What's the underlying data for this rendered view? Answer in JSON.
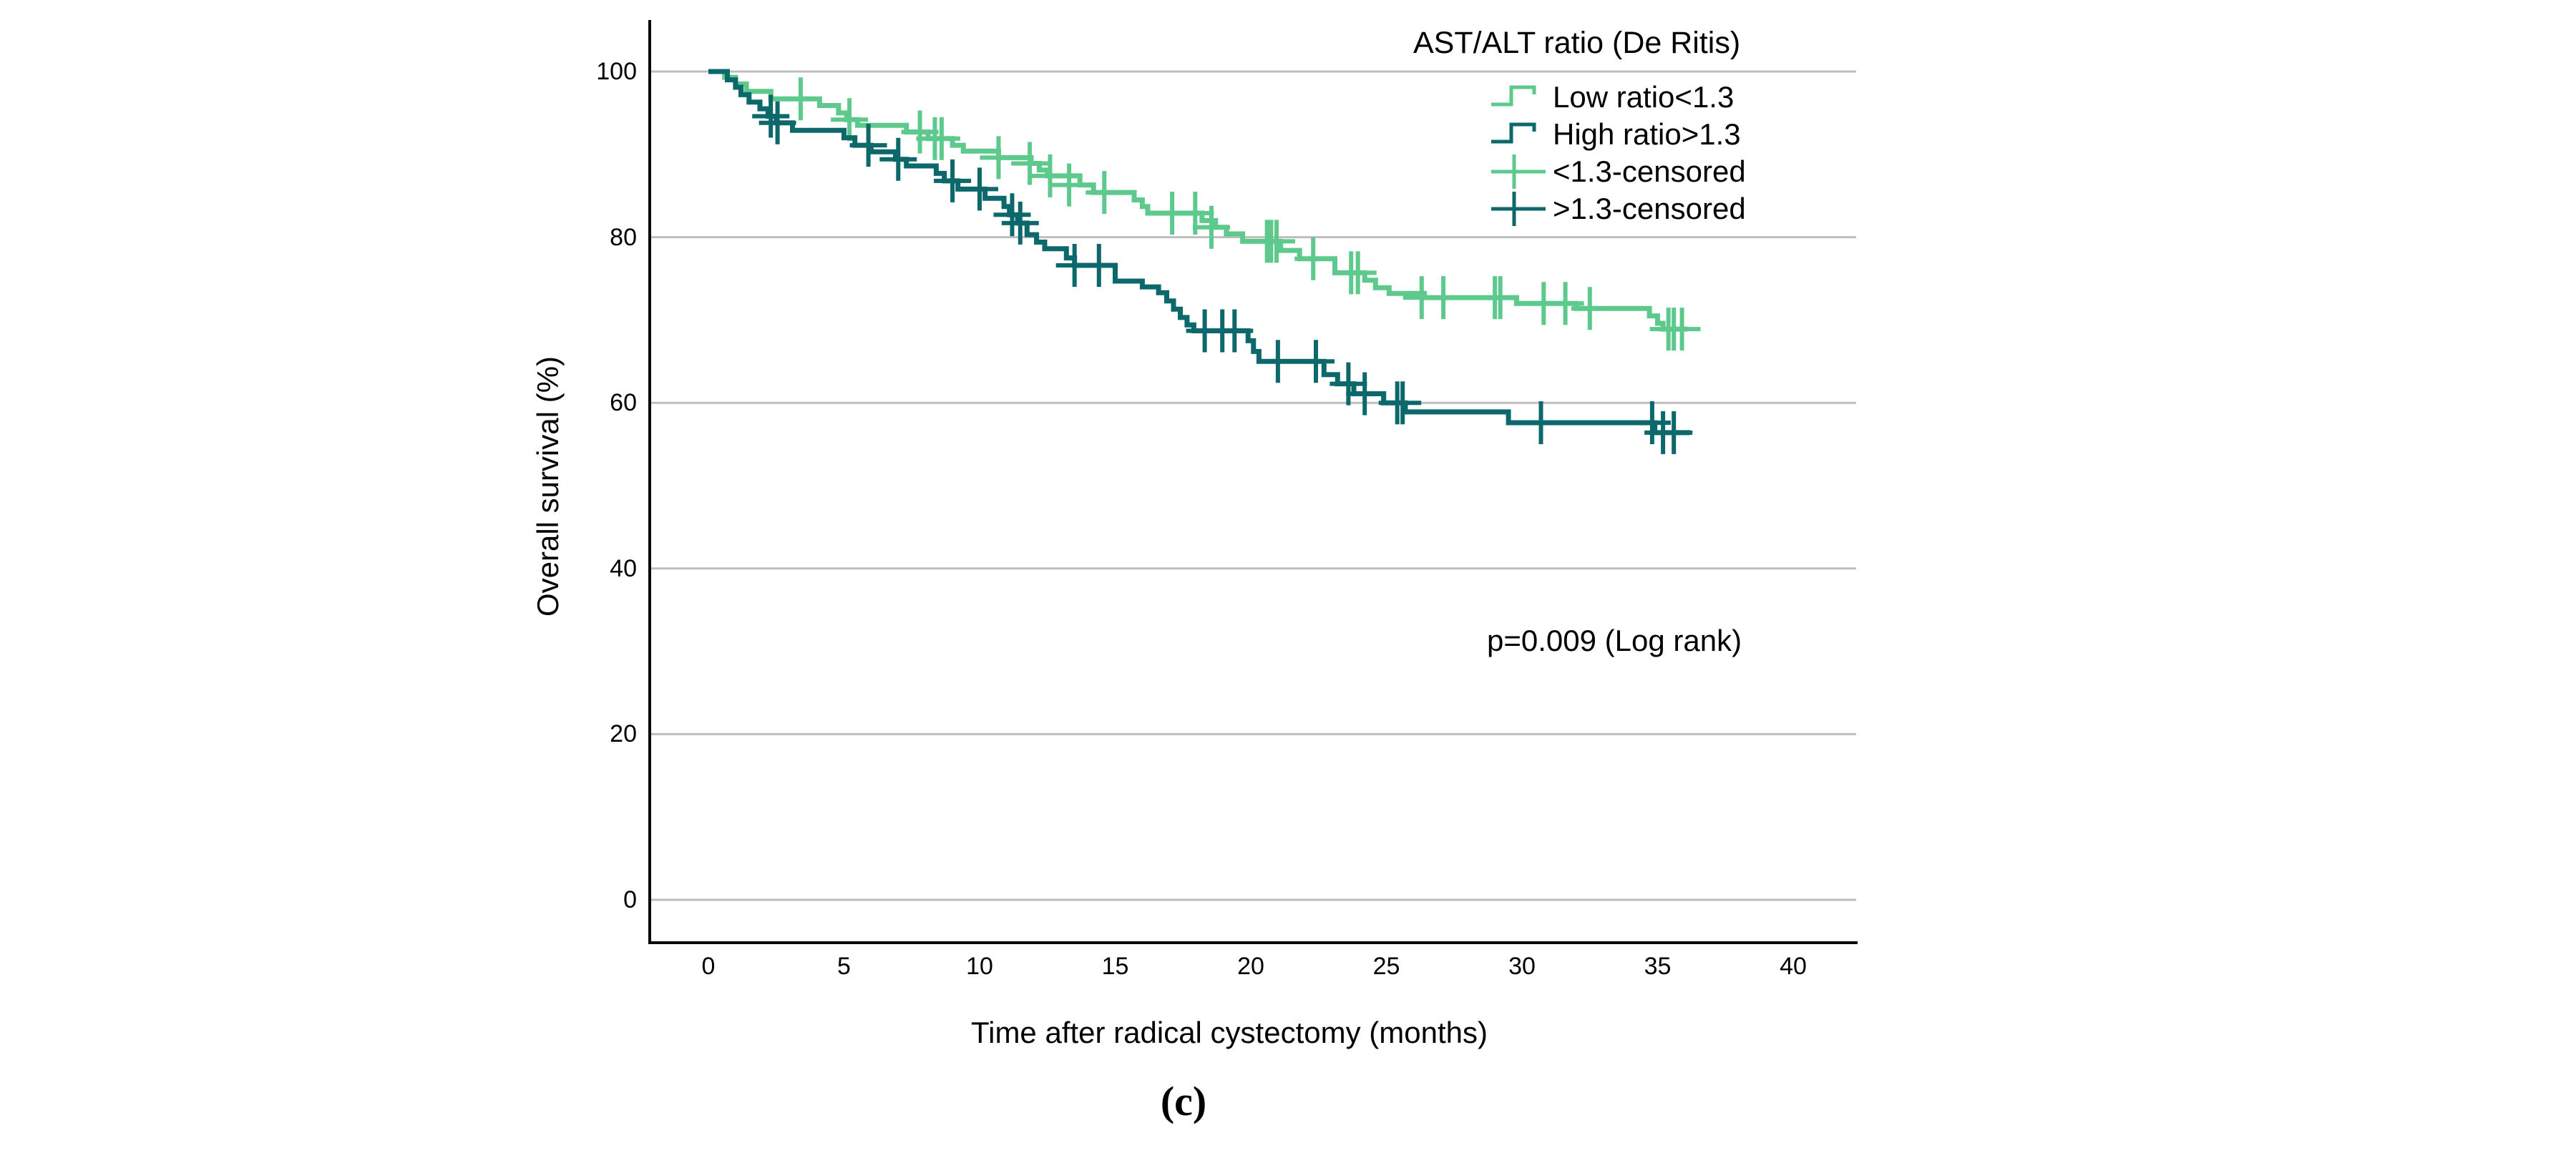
{
  "figure": {
    "panel_label": "(c)"
  },
  "legend": {
    "title": "AST/ALT ratio (De Ritis)",
    "items": [
      {
        "label": "Low ratio<1.3",
        "marker": "step-line",
        "color": "#5dc98c"
      },
      {
        "label": "High ratio>1.3",
        "marker": "step-line",
        "color": "#0d686b"
      },
      {
        "label": "<1.3-censored",
        "marker": "plus",
        "color": "#5dc98c"
      },
      {
        "label": ">1.3-censored",
        "marker": "plus",
        "color": "#0d686b"
      }
    ]
  },
  "chart_data": {
    "type": "line",
    "subtype": "kaplan-meier-step",
    "title": "AST/ALT ratio (De Ritis)",
    "xlabel": "Time after radical cystectomy (months)",
    "ylabel": "Overall survival (%)",
    "annotation": "p=0.009 (Log rank)",
    "xlim": [
      -2.2,
      42.5
    ],
    "ylim": [
      -5,
      106
    ],
    "x_ticks": [
      0,
      5,
      10,
      15,
      20,
      25,
      30,
      35,
      40
    ],
    "y_ticks": [
      100,
      80,
      60,
      40,
      20,
      0
    ],
    "grid": "horizontal",
    "legend_position": "top-right",
    "style": {
      "grid_color": "#bebebe",
      "axis_color": "#0a0a0a",
      "background": "#ffffff"
    },
    "series": [
      {
        "id": "low-ratio",
        "name": "Low ratio<1.3",
        "color": "#5dc98c",
        "end_month": 36.1,
        "steps": [
          [
            0,
            100
          ],
          [
            0.6,
            99.3
          ],
          [
            1.0,
            98.5
          ],
          [
            1.4,
            97.6
          ],
          [
            2.3,
            96.7
          ],
          [
            4.1,
            95.9
          ],
          [
            4.8,
            95.0
          ],
          [
            5.1,
            94.2
          ],
          [
            5.5,
            93.5
          ],
          [
            7.3,
            92.7
          ],
          [
            8.1,
            91.9
          ],
          [
            9.0,
            91.1
          ],
          [
            9.4,
            90.4
          ],
          [
            10.7,
            89.6
          ],
          [
            11.9,
            88.9
          ],
          [
            12.2,
            88.1
          ],
          [
            12.5,
            87.4
          ],
          [
            13.7,
            86.3
          ],
          [
            14.2,
            85.4
          ],
          [
            15.7,
            84.5
          ],
          [
            16.0,
            83.7
          ],
          [
            16.2,
            82.9
          ],
          [
            18.2,
            82.0
          ],
          [
            18.7,
            81.2
          ],
          [
            19.1,
            80.4
          ],
          [
            19.7,
            79.5
          ],
          [
            21.1,
            78.4
          ],
          [
            21.8,
            77.4
          ],
          [
            23.1,
            75.7
          ],
          [
            24.2,
            74.8
          ],
          [
            24.6,
            73.9
          ],
          [
            25.1,
            73.2
          ],
          [
            26.4,
            72.7
          ],
          [
            29.8,
            72.0
          ],
          [
            32.0,
            71.4
          ],
          [
            34.7,
            70.5
          ],
          [
            35.0,
            69.6
          ],
          [
            35.2,
            68.9
          ]
        ],
        "censored": [
          [
            3.4,
            96.7
          ],
          [
            5.2,
            94.2
          ],
          [
            7.8,
            92.7
          ],
          [
            8.35,
            91.9
          ],
          [
            8.6,
            91.9
          ],
          [
            10.7,
            89.6
          ],
          [
            11.85,
            88.9
          ],
          [
            12.6,
            87.4
          ],
          [
            13.3,
            86.3
          ],
          [
            14.6,
            85.4
          ],
          [
            17.1,
            82.9
          ],
          [
            17.95,
            82.9
          ],
          [
            18.55,
            81.2
          ],
          [
            20.6,
            79.5
          ],
          [
            20.75,
            79.5
          ],
          [
            20.95,
            79.5
          ],
          [
            22.3,
            77.4
          ],
          [
            23.7,
            75.7
          ],
          [
            23.95,
            75.7
          ],
          [
            26.3,
            72.7
          ],
          [
            27.1,
            72.7
          ],
          [
            29.0,
            72.7
          ],
          [
            29.2,
            72.7
          ],
          [
            30.8,
            72.0
          ],
          [
            31.6,
            72.0
          ],
          [
            32.5,
            71.4
          ],
          [
            35.4,
            68.9
          ],
          [
            35.6,
            68.9
          ],
          [
            35.9,
            68.9
          ]
        ]
      },
      {
        "id": "high-ratio",
        "name": "High ratio>1.3",
        "color": "#0d686b",
        "end_month": 36.2,
        "steps": [
          [
            0,
            100
          ],
          [
            0.7,
            99.0
          ],
          [
            1.0,
            98.1
          ],
          [
            1.2,
            97.2
          ],
          [
            1.5,
            96.3
          ],
          [
            1.9,
            95.5
          ],
          [
            2.2,
            94.6
          ],
          [
            2.5,
            93.8
          ],
          [
            3.1,
            92.9
          ],
          [
            5.0,
            92.0
          ],
          [
            5.4,
            91.1
          ],
          [
            6.0,
            90.3
          ],
          [
            6.9,
            89.4
          ],
          [
            7.3,
            88.6
          ],
          [
            8.4,
            87.7
          ],
          [
            8.7,
            86.8
          ],
          [
            9.2,
            85.8
          ],
          [
            10.2,
            84.7
          ],
          [
            10.9,
            83.7
          ],
          [
            11.1,
            82.7
          ],
          [
            11.4,
            81.7
          ],
          [
            11.75,
            80.3
          ],
          [
            12.1,
            79.4
          ],
          [
            12.4,
            78.6
          ],
          [
            13.2,
            77.5
          ],
          [
            13.5,
            76.6
          ],
          [
            15.0,
            74.7
          ],
          [
            16.0,
            74.0
          ],
          [
            16.6,
            73.3
          ],
          [
            16.9,
            72.3
          ],
          [
            17.15,
            71.3
          ],
          [
            17.4,
            70.3
          ],
          [
            17.65,
            69.4
          ],
          [
            17.9,
            68.7
          ],
          [
            19.9,
            67.5
          ],
          [
            20.1,
            66.2
          ],
          [
            20.3,
            65.0
          ],
          [
            22.7,
            63.4
          ],
          [
            23.2,
            62.3
          ],
          [
            23.8,
            61.1
          ],
          [
            24.9,
            60.0
          ],
          [
            25.7,
            58.9
          ],
          [
            29.5,
            57.6
          ],
          [
            34.9,
            56.4
          ]
        ],
        "censored": [
          [
            2.3,
            94.6
          ],
          [
            2.55,
            93.8
          ],
          [
            5.9,
            91.1
          ],
          [
            7.0,
            89.4
          ],
          [
            9.0,
            86.8
          ],
          [
            10.0,
            85.8
          ],
          [
            11.2,
            82.7
          ],
          [
            11.5,
            81.7
          ],
          [
            13.5,
            76.6
          ],
          [
            14.4,
            76.6
          ],
          [
            18.3,
            68.7
          ],
          [
            18.95,
            68.7
          ],
          [
            19.4,
            68.7
          ],
          [
            21.0,
            65.0
          ],
          [
            22.4,
            65.0
          ],
          [
            23.6,
            62.3
          ],
          [
            24.2,
            61.1
          ],
          [
            25.4,
            60.0
          ],
          [
            25.6,
            60.0
          ],
          [
            30.7,
            57.6
          ],
          [
            34.8,
            57.6
          ],
          [
            35.2,
            56.4
          ],
          [
            35.6,
            56.4
          ]
        ]
      }
    ]
  }
}
